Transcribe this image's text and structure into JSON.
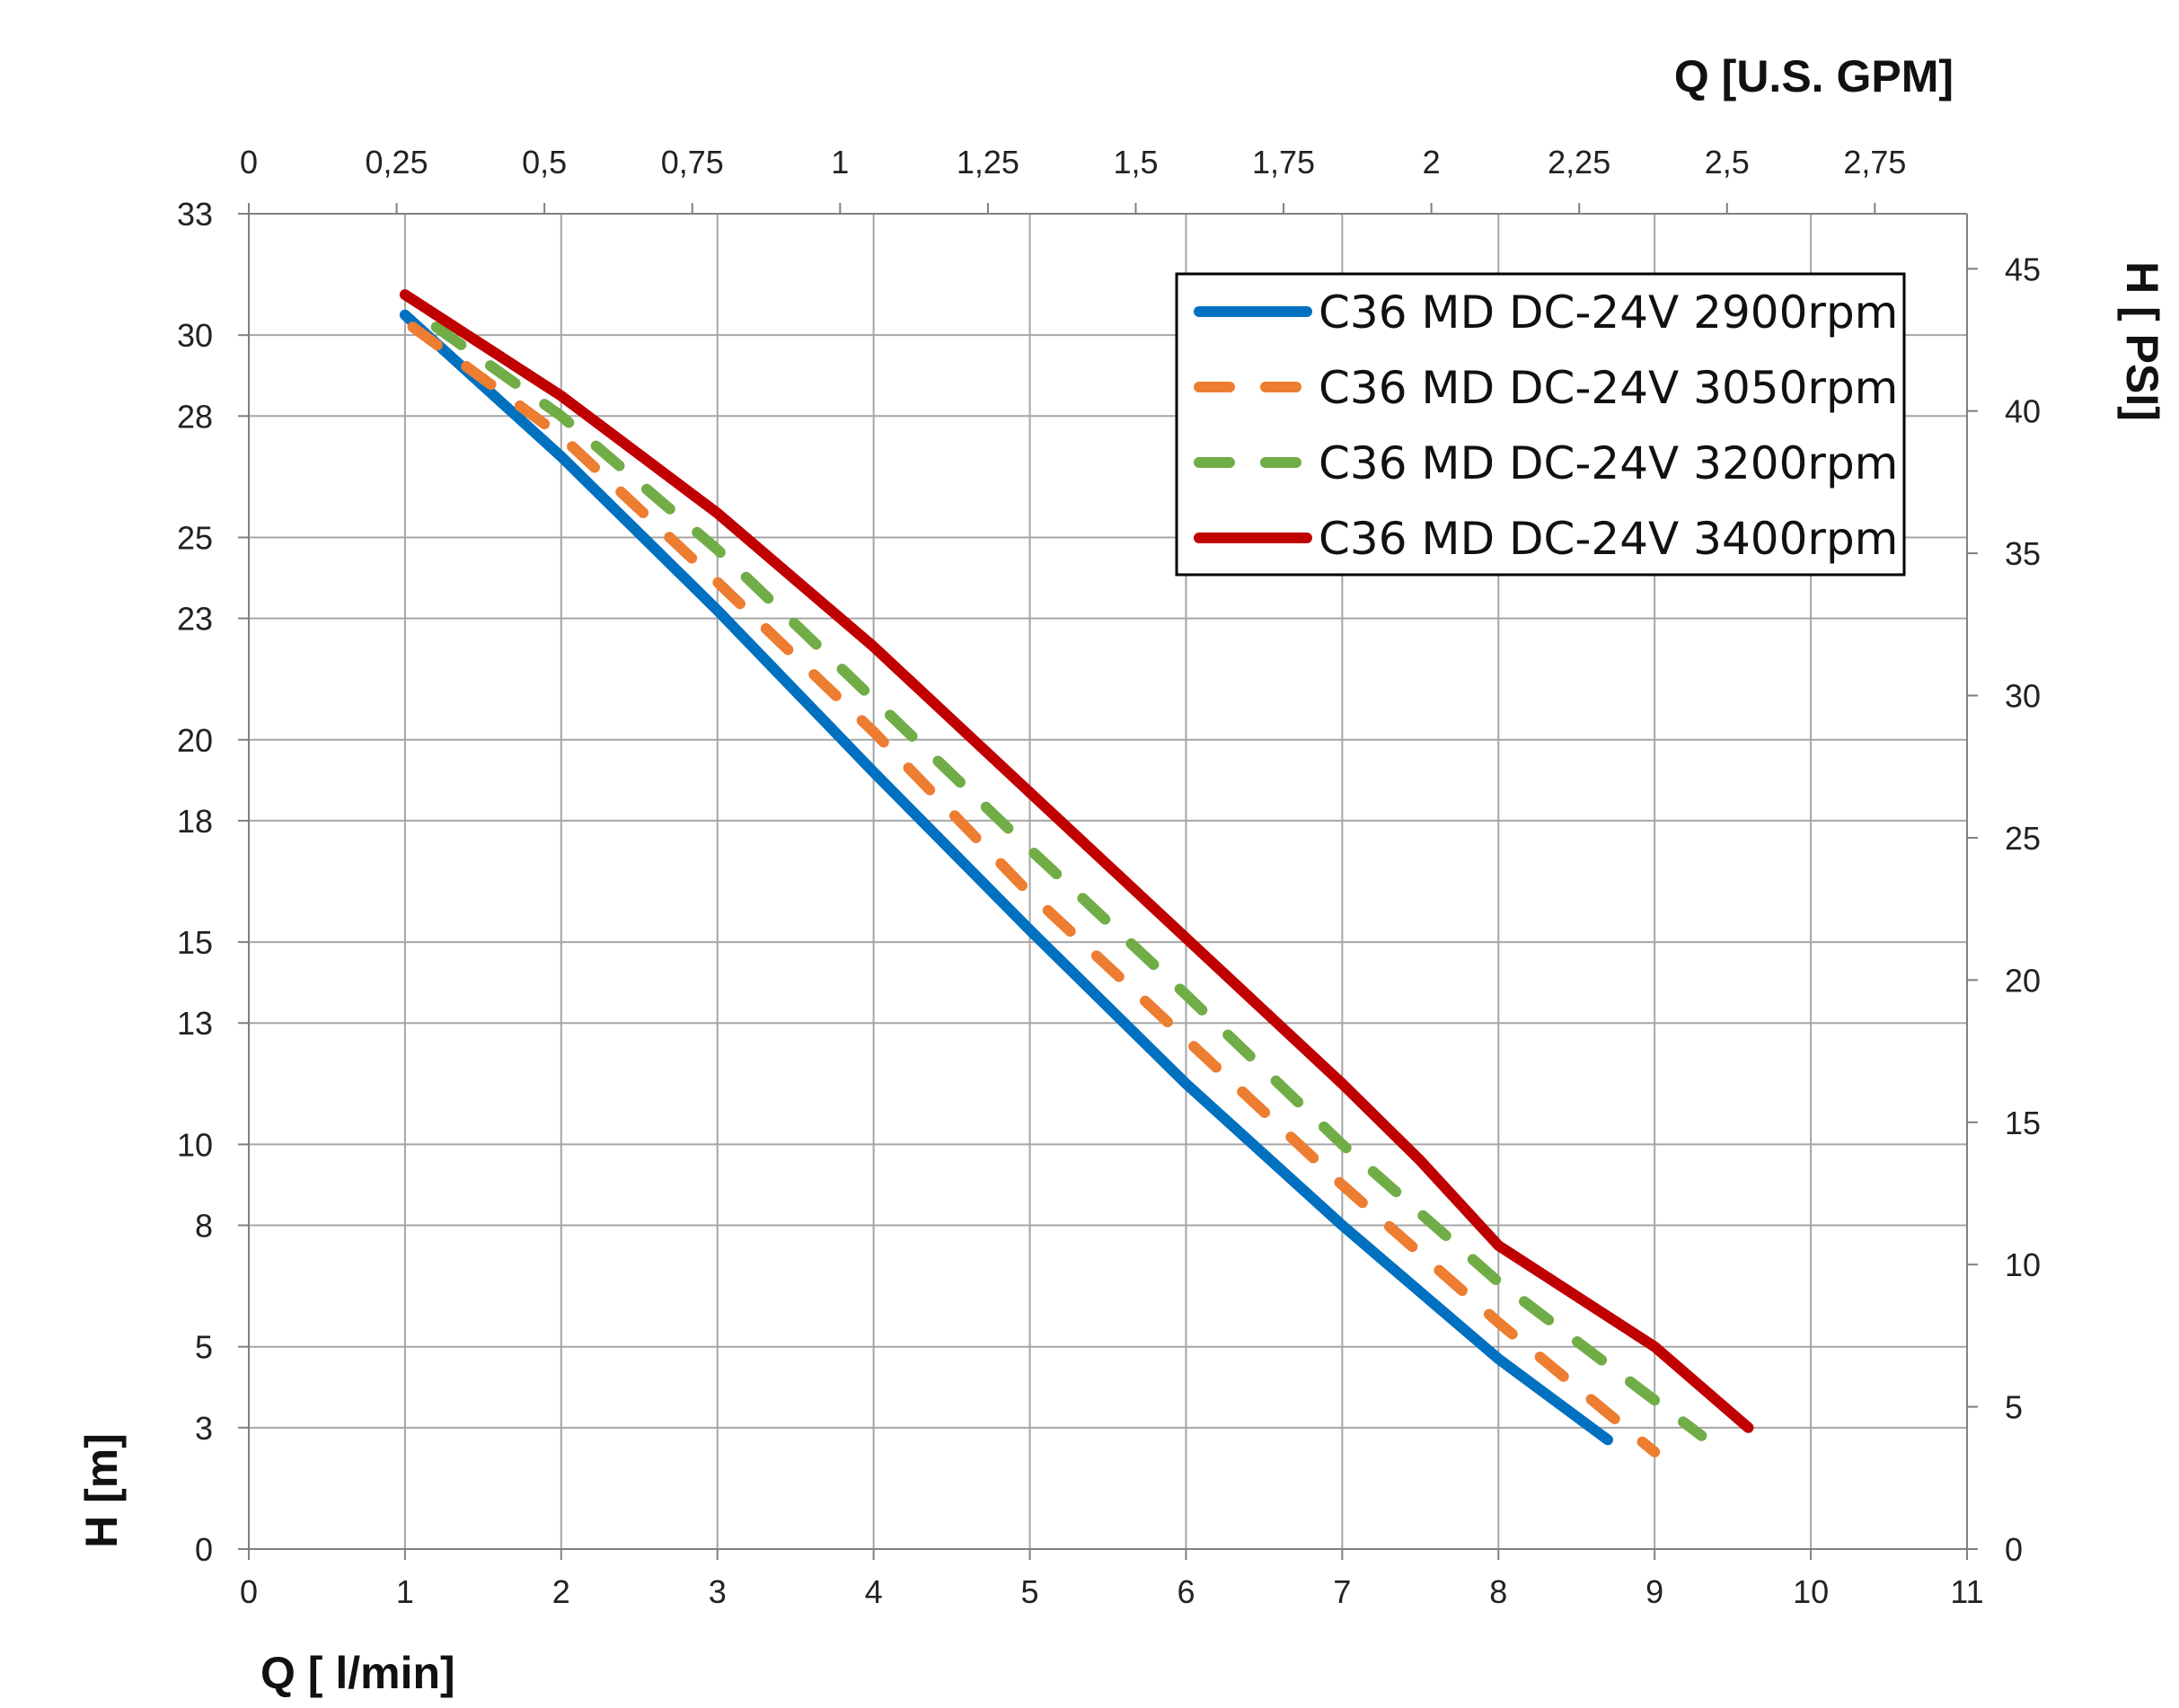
{
  "chart_data": {
    "type": "line",
    "xlabel": "Q [ l/min]",
    "x2label": "Q  [U.S. GPM]",
    "ylabel": "H [m]",
    "y2label": "H [ PSI]",
    "xlim": [
      0,
      11
    ],
    "ylim": [
      0,
      33
    ],
    "x2lim": [
      0,
      2.9059
    ],
    "y2lim": [
      0,
      46.935
    ],
    "x_ticks": [
      "0",
      "1",
      "2",
      "3",
      "4",
      "5",
      "6",
      "7",
      "8",
      "9",
      "10",
      "11"
    ],
    "x2_ticks": [
      "0",
      "0,25",
      "0,5",
      "0,75",
      "1",
      "1,25",
      "1,5",
      "1,75",
      "2",
      "2,25",
      "2,5",
      "2,75"
    ],
    "y_ticks": [
      "0",
      "3",
      "5",
      "8",
      "10",
      "13",
      "15",
      "18",
      "20",
      "23",
      "25",
      "28",
      "30",
      "33"
    ],
    "y2_ticks": [
      "0",
      "5",
      "10",
      "15",
      "20",
      "25",
      "30",
      "35",
      "40",
      "45"
    ],
    "grid": true,
    "legend_position": "top-right",
    "colors": {
      "series_2900": "#0070C0",
      "series_3050": "#ED7D31",
      "series_3200": "#70AD47",
      "series_3400": "#C00000",
      "grid": "#A6A6A6",
      "axis": "#7F7F7F"
    },
    "series": [
      {
        "name": "C36 MD DC-24V 2900rpm",
        "style": "solid",
        "x": [
          1.0,
          2.0,
          3.0,
          4.0,
          5.0,
          6.0,
          7.0,
          8.0,
          8.7
        ],
        "y": [
          30.5,
          27.0,
          23.2,
          19.2,
          15.3,
          11.5,
          8.0,
          4.7,
          2.7
        ]
      },
      {
        "name": "C36 MD DC-24V 3050rpm",
        "style": "dashed",
        "x": [
          1.05,
          2.0,
          3.0,
          4.0,
          5.0,
          6.0,
          7.0,
          8.0,
          9.0
        ],
        "y": [
          30.2,
          27.5,
          23.9,
          20.2,
          16.2,
          12.6,
          9.0,
          5.6,
          2.4
        ]
      },
      {
        "name": "C36 MD DC-24V 3200rpm",
        "style": "dashed",
        "x": [
          1.2,
          2.0,
          3.0,
          4.0,
          5.0,
          6.0,
          7.0,
          8.0,
          9.3
        ],
        "y": [
          30.2,
          28.0,
          24.7,
          21.0,
          17.3,
          13.7,
          10.0,
          6.6,
          2.8
        ]
      },
      {
        "name": "C36 MD DC-24V 3400rpm",
        "style": "solid",
        "x": [
          1.0,
          2.0,
          3.0,
          4.0,
          5.0,
          6.0,
          7.0,
          7.5,
          8.0,
          9.0,
          9.6
        ],
        "y": [
          31.0,
          28.5,
          25.6,
          22.3,
          18.7,
          15.1,
          11.5,
          9.6,
          7.5,
          5.0,
          3.0
        ]
      }
    ]
  }
}
